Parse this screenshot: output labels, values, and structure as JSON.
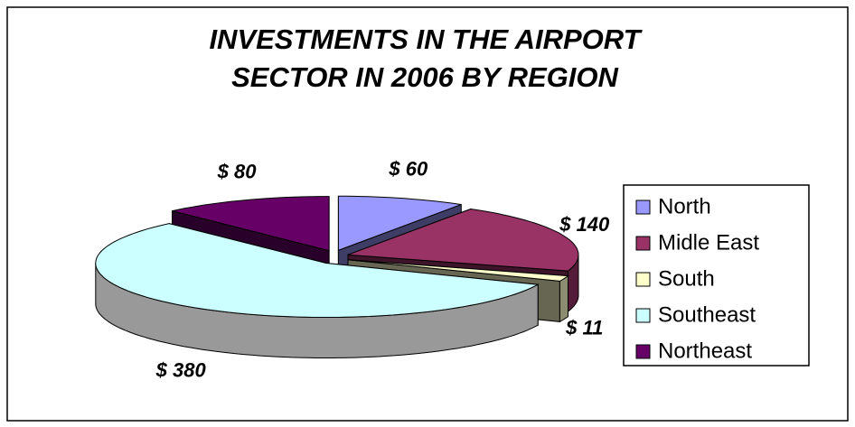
{
  "chart_data": {
    "type": "pie3d",
    "title": [
      "INVESTMENTS IN THE AIRPORT",
      "SECTOR IN 2006 BY REGION"
    ],
    "categories": [
      "North",
      "Midle East",
      "South",
      "Southeast",
      "Northeast"
    ],
    "values": [
      60,
      140,
      11,
      380,
      80
    ],
    "value_labels": [
      "$ 60",
      "$ 140",
      "$ 11",
      "$ 380",
      "$ 80"
    ],
    "colors": [
      "#9999ff",
      "#993366",
      "#ffffcc",
      "#ccffff",
      "#660066"
    ],
    "legend": "right"
  }
}
